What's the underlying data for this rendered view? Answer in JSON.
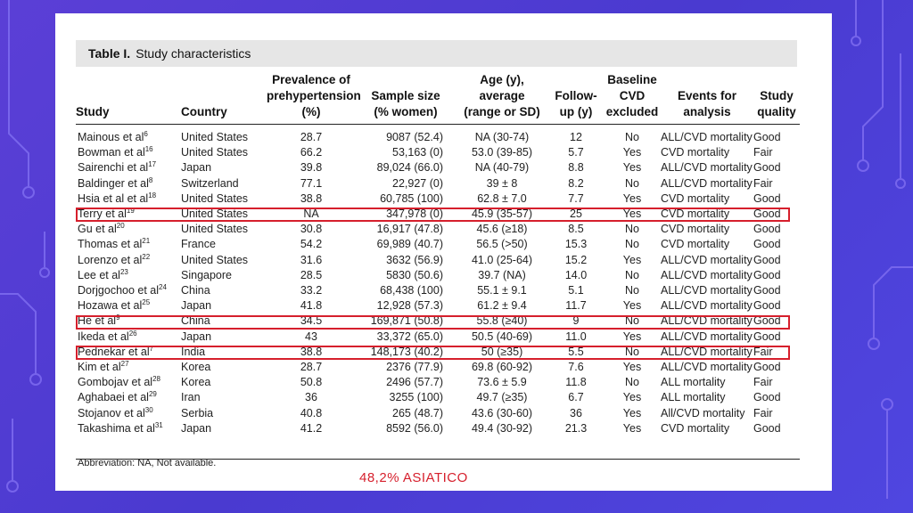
{
  "table": {
    "label": "Table I.",
    "caption": "Study characteristics",
    "headers": {
      "study": "Study",
      "country": "Country",
      "prevalence": [
        "Prevalence of",
        "prehypertension",
        "(%)"
      ],
      "sample": [
        "Sample size",
        "(% women)"
      ],
      "age": [
        "Age (y),",
        "average",
        "(range or SD)"
      ],
      "followup": [
        "Follow-",
        "up (y)"
      ],
      "baseline": [
        "Baseline",
        "CVD",
        "excluded"
      ],
      "events": [
        "Events for",
        "analysis"
      ],
      "quality": [
        "Study",
        "quality"
      ]
    },
    "rows": [
      {
        "study": "Mainous et al",
        "ref": "6",
        "country": "United States",
        "prevalence": "28.7",
        "sample": "9087 (52.4)",
        "age": "NA (30-74)",
        "followup": "12",
        "baseline": "No",
        "events": "ALL/CVD mortality",
        "quality": "Good"
      },
      {
        "study": "Bowman et al",
        "ref": "16",
        "country": "United States",
        "prevalence": "66.2",
        "sample": "53,163 (0)",
        "age": "53.0 (39-85)",
        "followup": "5.7",
        "baseline": "Yes",
        "events": "CVD mortality",
        "quality": "Fair"
      },
      {
        "study": "Sairenchi et al",
        "ref": "17",
        "country": "Japan",
        "prevalence": "39.8",
        "sample": "89,024 (66.0)",
        "age": "NA (40-79)",
        "followup": "8.8",
        "baseline": "Yes",
        "events": "ALL/CVD mortality",
        "quality": "Good"
      },
      {
        "study": "Baldinger et al",
        "ref": "8",
        "country": "Switzerland",
        "prevalence": "77.1",
        "sample": "22,927 (0)",
        "age": "39 ± 8",
        "followup": "8.2",
        "baseline": "No",
        "events": "ALL/CVD mortality",
        "quality": "Fair"
      },
      {
        "study": "Hsia et al et al",
        "ref": "18",
        "country": "United States",
        "prevalence": "38.8",
        "sample": "60,785 (100)",
        "age": "62.8 ± 7.0",
        "followup": "7.7",
        "baseline": "Yes",
        "events": "CVD mortality",
        "quality": "Good"
      },
      {
        "study": "Terry et al",
        "ref": "19",
        "country": "United States",
        "prevalence": "NA",
        "sample": "347,978 (0)",
        "age": "45.9 (35-57)",
        "followup": "25",
        "baseline": "Yes",
        "events": "CVD mortality",
        "quality": "Good"
      },
      {
        "study": "Gu et al",
        "ref": "20",
        "country": "United States",
        "prevalence": "30.8",
        "sample": "16,917 (47.8)",
        "age": "45.6 (≥18)",
        "followup": "8.5",
        "baseline": "No",
        "events": "CVD mortality",
        "quality": "Good"
      },
      {
        "study": "Thomas et al",
        "ref": "21",
        "country": "France",
        "prevalence": "54.2",
        "sample": "69,989 (40.7)",
        "age": "56.5 (>50)",
        "followup": "15.3",
        "baseline": "No",
        "events": "CVD mortality",
        "quality": "Good"
      },
      {
        "study": "Lorenzo et al",
        "ref": "22",
        "country": "United States",
        "prevalence": "31.6",
        "sample": "3632 (56.9)",
        "age": "41.0 (25-64)",
        "followup": "15.2",
        "baseline": "Yes",
        "events": "ALL/CVD mortality",
        "quality": "Good"
      },
      {
        "study": "Lee et al",
        "ref": "23",
        "country": "Singapore",
        "prevalence": "28.5",
        "sample": "5830 (50.6)",
        "age": "39.7 (NA)",
        "followup": "14.0",
        "baseline": "No",
        "events": "ALL/CVD mortality",
        "quality": "Good"
      },
      {
        "study": "Dorjgochoo et al",
        "ref": "24",
        "country": "China",
        "prevalence": "33.2",
        "sample": "68,438 (100)",
        "age": "55.1 ± 9.1",
        "followup": "5.1",
        "baseline": "No",
        "events": "ALL/CVD mortality",
        "quality": "Good"
      },
      {
        "study": "Hozawa et al",
        "ref": "25",
        "country": "Japan",
        "prevalence": "41.8",
        "sample": "12,928 (57.3)",
        "age": "61.2 ± 9.4",
        "followup": "11.7",
        "baseline": "Yes",
        "events": "ALL/CVD mortality",
        "quality": "Good"
      },
      {
        "study": "He et al",
        "ref": "9",
        "country": "China",
        "prevalence": "34.5",
        "sample": "169,871 (50.8)",
        "age": "55.8 (≥40)",
        "followup": "9",
        "baseline": "No",
        "events": "ALL/CVD mortality",
        "quality": "Good"
      },
      {
        "study": "Ikeda et al",
        "ref": "26",
        "country": "Japan",
        "prevalence": "43",
        "sample": "33,372 (65.0)",
        "age": "50.5 (40-69)",
        "followup": "11.0",
        "baseline": "Yes",
        "events": "ALL/CVD mortality",
        "quality": "Good"
      },
      {
        "study": "Pednekar et al",
        "ref": "7",
        "country": "India",
        "prevalence": "38.8",
        "sample": "148,173 (40.2)",
        "age": "50 (≥35)",
        "followup": "5.5",
        "baseline": "No",
        "events": "ALL/CVD mortality",
        "quality": "Fair"
      },
      {
        "study": "Kim et al",
        "ref": "27",
        "country": "Korea",
        "prevalence": "28.7",
        "sample": "2376 (77.9)",
        "age": "69.8 (60-92)",
        "followup": "7.6",
        "baseline": "Yes",
        "events": "ALL/CVD mortality",
        "quality": "Good"
      },
      {
        "study": "Gombojav et al",
        "ref": "28",
        "country": "Korea",
        "prevalence": "50.8",
        "sample": "2496 (57.7)",
        "age": "73.6 ± 5.9",
        "followup": "11.8",
        "baseline": "No",
        "events": "ALL mortality",
        "quality": "Fair"
      },
      {
        "study": "Aghabaei et al",
        "ref": "29",
        "country": "Iran",
        "prevalence": "36",
        "sample": "3255 (100)",
        "age": "49.7 (≥35)",
        "followup": "6.7",
        "baseline": "Yes",
        "events": "ALL mortality",
        "quality": "Good"
      },
      {
        "study": "Stojanov et al",
        "ref": "30",
        "country": "Serbia",
        "prevalence": "40.8",
        "sample": "265 (48.7)",
        "age": "43.6 (30-60)",
        "followup": "36",
        "baseline": "Yes",
        "events": "All/CVD mortality",
        "quality": "Fair"
      },
      {
        "study": "Takashima et al",
        "ref": "31",
        "country": "Japan",
        "prevalence": "41.2",
        "sample": "8592 (56.0)",
        "age": "49.4 (30-92)",
        "followup": "21.3",
        "baseline": "Yes",
        "events": "CVD mortality",
        "quality": "Good"
      }
    ],
    "footnote": "Abbreviation: NA, Not available."
  },
  "highlighted_rows": [
    "Terry et al",
    "He et al",
    "Pednekar et al"
  ],
  "caption": "48,2% ASIATICO",
  "colors": {
    "background": "#5b3fd6",
    "highlight": "#d61f2c",
    "caption": "#d61f2c"
  }
}
